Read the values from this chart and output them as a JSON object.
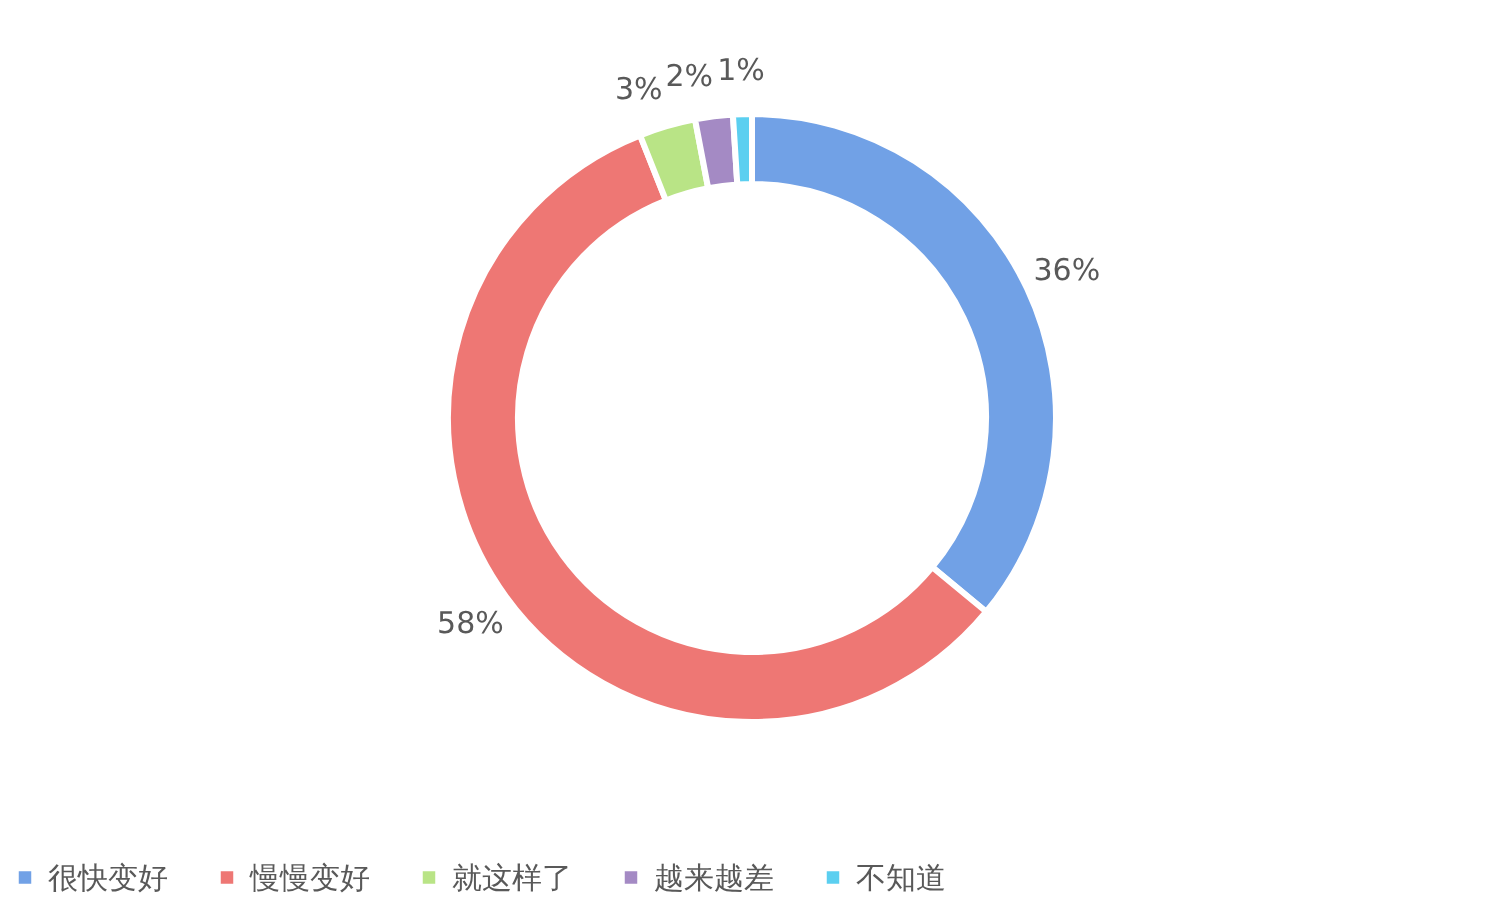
{
  "chart_data": {
    "type": "donut",
    "categories": [
      "很快变好",
      "慢慢变好",
      "就这样了",
      "越来越差",
      "不知道"
    ],
    "values": [
      36,
      58,
      3,
      2,
      1
    ],
    "colors": [
      "#71a1e6",
      "#ee7774",
      "#b9e486",
      "#a48ac4",
      "#5bcff0"
    ],
    "value_labels": [
      "36%",
      "58%",
      "3%",
      "2%",
      "1%"
    ],
    "legend": "bottom"
  }
}
